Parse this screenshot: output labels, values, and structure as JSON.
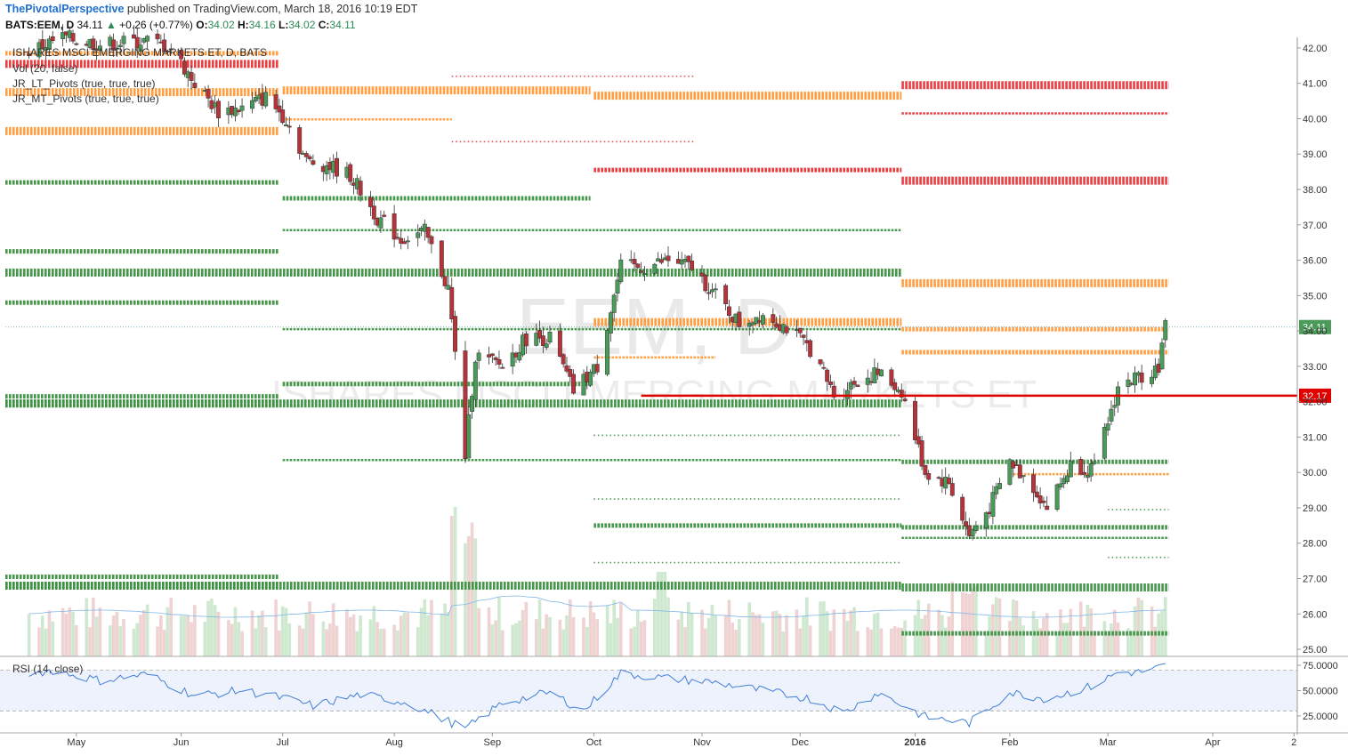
{
  "header": {
    "publisher": "ThePivotalPerspective",
    "published_text": "published on TradingView.com, March 18, 2016 10:19 EDT",
    "symbol": "BATS:EEM, D",
    "last": "34.11",
    "change": "+0.26 (+0.77%)",
    "o_label": "O:",
    "o": "34.02",
    "h_label": "H:",
    "h": "34.16",
    "l_label": "L:",
    "l": "34.02",
    "c_label": "C:",
    "c": "34.11"
  },
  "legend": {
    "title": "ISHARES MSCI EMERGING MARKETS ET, D, BATS",
    "vol": "Vol (20, false)",
    "lt_pivots": "JR_LT_Pivots (true, true, true)",
    "mt_pivots": "JR_MT_Pivots (true, true, true)"
  },
  "watermark": {
    "symbol": "EEM, D",
    "name": "ISHARES MSCI EMERGING MARKETS ET"
  },
  "rsi_label": "RSI (14, close)",
  "colors": {
    "up": "#4a9a5a",
    "down": "#b7333a",
    "green_level": "#3d9142",
    "orange_level": "#ff9a3c",
    "red_level": "#e8343a",
    "highlight": "#e00000",
    "rsi_line": "#3f7fd6",
    "rsi_band": "#eef2fc"
  },
  "chart_data": {
    "type": "candlestick",
    "title": "BATS:EEM, D",
    "y_range": [
      24.8,
      42.3
    ],
    "y_ticks": [
      "42.00",
      "41.00",
      "40.00",
      "39.00",
      "38.00",
      "37.00",
      "36.00",
      "35.00",
      "34.00",
      "33.00",
      "32.00",
      "31.00",
      "30.00",
      "29.00",
      "28.00",
      "27.00",
      "26.00",
      "25.00"
    ],
    "x_labels": [
      "May",
      "Jun",
      "Jul",
      "Aug",
      "Sep",
      "Oct",
      "Nov",
      "Dec",
      "2016",
      "Feb",
      "Mar",
      "Apr",
      "2"
    ],
    "last_price_label": "34.11",
    "highlight_level": {
      "value": 32.17,
      "label": "32.17"
    },
    "price_path": [
      [
        "2015-04-17",
        41.9
      ],
      [
        "2015-04-27",
        42.3
      ],
      [
        "2015-05-08",
        42.1
      ],
      [
        "2015-05-22",
        42.2
      ],
      [
        "2015-05-29",
        42.0
      ],
      [
        "2015-06-05",
        41.0
      ],
      [
        "2015-06-12",
        40.2
      ],
      [
        "2015-06-19",
        40.3
      ],
      [
        "2015-06-26",
        40.6
      ],
      [
        "2015-07-02",
        40.0
      ],
      [
        "2015-07-08",
        38.8
      ],
      [
        "2015-07-14",
        38.7
      ],
      [
        "2015-07-21",
        38.4
      ],
      [
        "2015-07-29",
        37.2
      ],
      [
        "2015-08-05",
        36.6
      ],
      [
        "2015-08-12",
        36.8
      ],
      [
        "2015-08-19",
        35.2
      ],
      [
        "2015-08-24",
        30.5
      ],
      [
        "2015-08-27",
        33.3
      ],
      [
        "2015-09-04",
        33.0
      ],
      [
        "2015-09-11",
        33.8
      ],
      [
        "2015-09-18",
        33.8
      ],
      [
        "2015-09-25",
        32.3
      ],
      [
        "2015-10-02",
        33.0
      ],
      [
        "2015-10-09",
        35.8
      ],
      [
        "2015-10-16",
        35.8
      ],
      [
        "2015-10-23",
        36.0
      ],
      [
        "2015-10-30",
        35.8
      ],
      [
        "2015-11-06",
        35.0
      ],
      [
        "2015-11-13",
        34.2
      ],
      [
        "2015-11-20",
        34.5
      ],
      [
        "2015-11-27",
        34.1
      ],
      [
        "2015-12-04",
        33.5
      ],
      [
        "2015-12-11",
        32.2
      ],
      [
        "2015-12-18",
        32.6
      ],
      [
        "2015-12-24",
        32.8
      ],
      [
        "2015-12-31",
        32.3
      ],
      [
        "2016-01-07",
        30.0
      ],
      [
        "2016-01-14",
        29.7
      ],
      [
        "2016-01-20",
        28.2
      ],
      [
        "2016-01-26",
        29.0
      ],
      [
        "2016-02-01",
        30.3
      ],
      [
        "2016-02-08",
        29.6
      ],
      [
        "2016-02-12",
        29.0
      ],
      [
        "2016-02-19",
        30.2
      ],
      [
        "2016-02-26",
        30.1
      ],
      [
        "2016-03-04",
        32.4
      ],
      [
        "2016-03-10",
        32.7
      ],
      [
        "2016-03-16",
        33.0
      ],
      [
        "2016-03-18",
        34.11
      ]
    ],
    "levels": [
      {
        "from": "2015-04-10",
        "to": "2015-06-30",
        "y": 41.55,
        "style": "red",
        "w": "h"
      },
      {
        "from": "2015-04-10",
        "to": "2015-06-30",
        "y": 41.85,
        "style": "orange",
        "w": "m"
      },
      {
        "from": "2015-04-10",
        "to": "2015-06-30",
        "y": 40.75,
        "style": "orange",
        "w": "h"
      },
      {
        "from": "2015-04-10",
        "to": "2015-06-30",
        "y": 39.65,
        "style": "orange",
        "w": "h"
      },
      {
        "from": "2015-04-10",
        "to": "2015-06-30",
        "y": 38.2,
        "style": "green",
        "w": "m"
      },
      {
        "from": "2015-04-10",
        "to": "2015-06-30",
        "y": 36.25,
        "style": "green",
        "w": "m"
      },
      {
        "from": "2015-04-10",
        "to": "2015-06-30",
        "y": 34.8,
        "style": "green",
        "w": "m"
      },
      {
        "from": "2015-04-10",
        "to": "2015-06-30",
        "y": 32.15,
        "style": "green",
        "w": "m"
      },
      {
        "from": "2015-04-10",
        "to": "2015-06-30",
        "y": 31.95,
        "style": "green",
        "w": "h"
      },
      {
        "from": "2015-04-10",
        "to": "2015-06-30",
        "y": 27.05,
        "style": "green",
        "w": "m"
      },
      {
        "from": "2015-04-10",
        "to": "2015-06-30",
        "y": 26.8,
        "style": "green",
        "w": "h"
      },
      {
        "from": "2015-04-10",
        "to": "2015-12-31",
        "y": 35.65,
        "style": "green",
        "w": "h"
      },
      {
        "from": "2015-04-10",
        "to": "2015-12-31",
        "y": 31.95,
        "style": "green",
        "w": "h"
      },
      {
        "from": "2015-04-10",
        "to": "2015-12-31",
        "y": 26.8,
        "style": "green",
        "w": "h"
      },
      {
        "from": "2015-07-01",
        "to": "2015-09-30",
        "y": 40.8,
        "style": "orange",
        "w": "h"
      },
      {
        "from": "2015-07-01",
        "to": "2015-08-20",
        "y": 39.98,
        "style": "orange",
        "w": "t"
      },
      {
        "from": "2015-07-01",
        "to": "2015-09-30",
        "y": 37.75,
        "style": "green",
        "w": "m"
      },
      {
        "from": "2015-07-01",
        "to": "2015-12-31",
        "y": 36.85,
        "style": "green",
        "w": "t"
      },
      {
        "from": "2015-07-01",
        "to": "2015-12-31",
        "y": 34.05,
        "style": "green",
        "w": "t"
      },
      {
        "from": "2015-07-01",
        "to": "2015-12-31",
        "y": 30.35,
        "style": "green",
        "w": "t"
      },
      {
        "from": "2015-07-01",
        "to": "2015-09-30",
        "y": 32.5,
        "style": "green",
        "w": "m"
      },
      {
        "from": "2015-08-20",
        "to": "2015-10-31",
        "y": 41.2,
        "style": "rdot",
        "w": "d"
      },
      {
        "from": "2015-08-20",
        "to": "2015-10-31",
        "y": 39.35,
        "style": "rdot",
        "w": "d"
      },
      {
        "from": "2015-10-01",
        "to": "2015-12-31",
        "y": 40.65,
        "style": "orange",
        "w": "h"
      },
      {
        "from": "2015-10-01",
        "to": "2015-12-31",
        "y": 38.55,
        "style": "red",
        "w": "m"
      },
      {
        "from": "2015-10-01",
        "to": "2015-12-31",
        "y": 34.25,
        "style": "orange",
        "w": "h"
      },
      {
        "from": "2015-10-01",
        "to": "2015-11-06",
        "y": 33.25,
        "style": "orange",
        "w": "t"
      },
      {
        "from": "2015-12-31",
        "to": "2016-03-19",
        "y": 40.95,
        "style": "red",
        "w": "h"
      },
      {
        "from": "2015-12-31",
        "to": "2016-03-19",
        "y": 40.15,
        "style": "red",
        "w": "t"
      },
      {
        "from": "2015-12-31",
        "to": "2016-03-19",
        "y": 38.25,
        "style": "red",
        "w": "h"
      },
      {
        "from": "2015-12-31",
        "to": "2016-03-19",
        "y": 35.35,
        "style": "orange",
        "w": "h"
      },
      {
        "from": "2015-12-31",
        "to": "2016-03-19",
        "y": 34.05,
        "style": "orange",
        "w": "m"
      },
      {
        "from": "2015-12-31",
        "to": "2016-03-19",
        "y": 33.4,
        "style": "orange",
        "w": "m"
      },
      {
        "from": "2015-12-31",
        "to": "2016-03-19",
        "y": 30.3,
        "style": "green",
        "w": "m"
      },
      {
        "from": "2015-12-31",
        "to": "2016-03-19",
        "y": 28.45,
        "style": "green",
        "w": "m"
      },
      {
        "from": "2015-12-31",
        "to": "2016-03-19",
        "y": 28.15,
        "style": "green",
        "w": "t"
      },
      {
        "from": "2015-12-31",
        "to": "2016-03-19",
        "y": 26.75,
        "style": "green",
        "w": "h"
      },
      {
        "from": "2015-12-31",
        "to": "2016-03-19",
        "y": 25.45,
        "style": "green",
        "w": "m"
      },
      {
        "from": "2016-02-01",
        "to": "2016-03-19",
        "y": 29.95,
        "style": "orange",
        "w": "t"
      },
      {
        "from": "2016-03-01",
        "to": "2016-03-19",
        "y": 28.95,
        "style": "green",
        "w": "d"
      },
      {
        "from": "2016-03-01",
        "to": "2016-03-19",
        "y": 27.6,
        "style": "green",
        "w": "d"
      },
      {
        "from": "2015-10-01",
        "to": "2015-12-31",
        "y": 28.5,
        "style": "green",
        "w": "m"
      },
      {
        "from": "2015-10-01",
        "to": "2015-12-31",
        "y": 29.25,
        "style": "green",
        "w": "d"
      },
      {
        "from": "2015-10-01",
        "to": "2015-12-31",
        "y": 31.05,
        "style": "green",
        "w": "d"
      },
      {
        "from": "2015-10-01",
        "to": "2015-12-31",
        "y": 27.45,
        "style": "green",
        "w": "d"
      }
    ],
    "rsi": {
      "y_range": [
        10,
        82
      ],
      "y_ticks": [
        "75.0000",
        "50.0000",
        "25.0000"
      ],
      "band": [
        30,
        70
      ],
      "path": [
        [
          "2015-04-10",
          64
        ],
        [
          "2015-04-24",
          70
        ],
        [
          "2015-05-08",
          60
        ],
        [
          "2015-05-22",
          66
        ],
        [
          "2015-06-05",
          45
        ],
        [
          "2015-06-19",
          50
        ],
        [
          "2015-07-02",
          42
        ],
        [
          "2015-07-10",
          35
        ],
        [
          "2015-07-24",
          46
        ],
        [
          "2015-08-07",
          38
        ],
        [
          "2015-08-24",
          12
        ],
        [
          "2015-09-04",
          38
        ],
        [
          "2015-09-18",
          48
        ],
        [
          "2015-09-28",
          30
        ],
        [
          "2015-10-09",
          67
        ],
        [
          "2015-10-23",
          62
        ],
        [
          "2015-11-06",
          58
        ],
        [
          "2015-11-20",
          50
        ],
        [
          "2015-12-04",
          42
        ],
        [
          "2015-12-14",
          28
        ],
        [
          "2015-12-24",
          48
        ],
        [
          "2016-01-07",
          24
        ],
        [
          "2016-01-20",
          18
        ],
        [
          "2016-02-01",
          48
        ],
        [
          "2016-02-12",
          42
        ],
        [
          "2016-02-26",
          55
        ],
        [
          "2016-03-04",
          68
        ],
        [
          "2016-03-10",
          68
        ],
        [
          "2016-03-18",
          74
        ]
      ]
    }
  }
}
